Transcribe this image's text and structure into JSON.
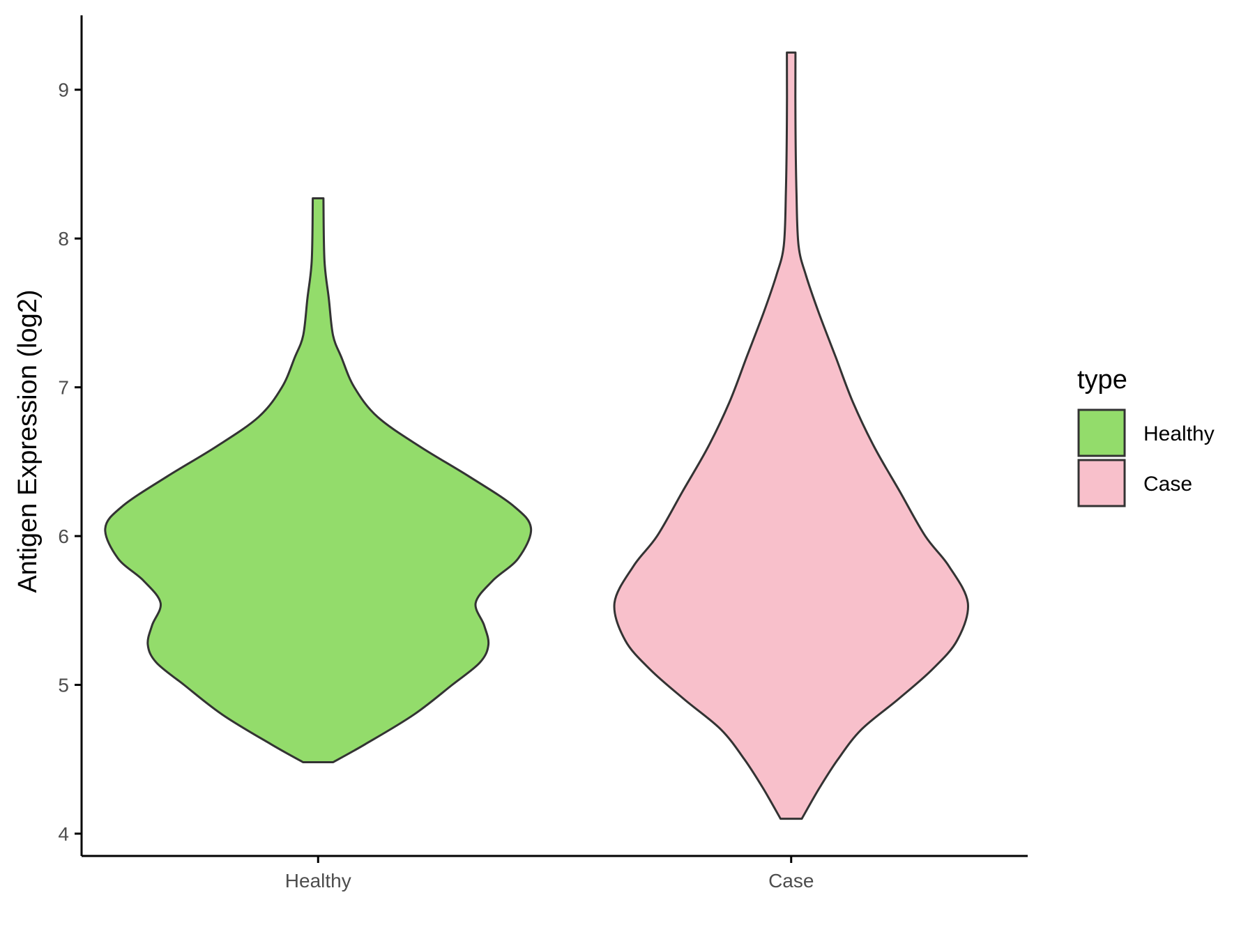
{
  "chart_data": {
    "type": "violin",
    "categories": [
      "Healthy",
      "Case"
    ],
    "ylabel": "Antigen Expression (log2)",
    "xlabel": "",
    "ylim": [
      3.85,
      9.5
    ],
    "yticks": [
      "4",
      "5",
      "6",
      "7",
      "8",
      "9"
    ],
    "grid": false,
    "legend": {
      "title": "type",
      "position": "right",
      "entries": [
        {
          "label": "Healthy",
          "color": "#93dc6b"
        },
        {
          "label": "Case",
          "color": "#f8c0cb"
        }
      ]
    },
    "series": [
      {
        "category": "Healthy",
        "color": "#93dc6b",
        "min": 4.48,
        "max": 8.27,
        "density": [
          [
            4.48,
            0.07
          ],
          [
            4.6,
            0.22
          ],
          [
            4.8,
            0.45
          ],
          [
            5.0,
            0.63
          ],
          [
            5.15,
            0.76
          ],
          [
            5.27,
            0.8
          ],
          [
            5.4,
            0.78
          ],
          [
            5.55,
            0.74
          ],
          [
            5.7,
            0.82
          ],
          [
            5.85,
            0.94
          ],
          [
            6.05,
            1.0
          ],
          [
            6.2,
            0.92
          ],
          [
            6.4,
            0.71
          ],
          [
            6.6,
            0.48
          ],
          [
            6.8,
            0.28
          ],
          [
            7.0,
            0.17
          ],
          [
            7.2,
            0.11
          ],
          [
            7.35,
            0.07
          ],
          [
            7.6,
            0.05
          ],
          [
            7.85,
            0.03
          ],
          [
            8.27,
            0.025
          ]
        ]
      },
      {
        "category": "Case",
        "color": "#f8c0cb",
        "min": 4.1,
        "max": 9.25,
        "density": [
          [
            4.1,
            0.05
          ],
          [
            4.3,
            0.13
          ],
          [
            4.5,
            0.22
          ],
          [
            4.7,
            0.33
          ],
          [
            4.9,
            0.5
          ],
          [
            5.1,
            0.66
          ],
          [
            5.3,
            0.78
          ],
          [
            5.55,
            0.83
          ],
          [
            5.8,
            0.74
          ],
          [
            6.0,
            0.63
          ],
          [
            6.3,
            0.51
          ],
          [
            6.6,
            0.39
          ],
          [
            6.9,
            0.29
          ],
          [
            7.2,
            0.21
          ],
          [
            7.5,
            0.13
          ],
          [
            7.75,
            0.07
          ],
          [
            7.95,
            0.035
          ],
          [
            8.3,
            0.025
          ],
          [
            8.8,
            0.02
          ],
          [
            9.25,
            0.02
          ]
        ]
      }
    ]
  }
}
